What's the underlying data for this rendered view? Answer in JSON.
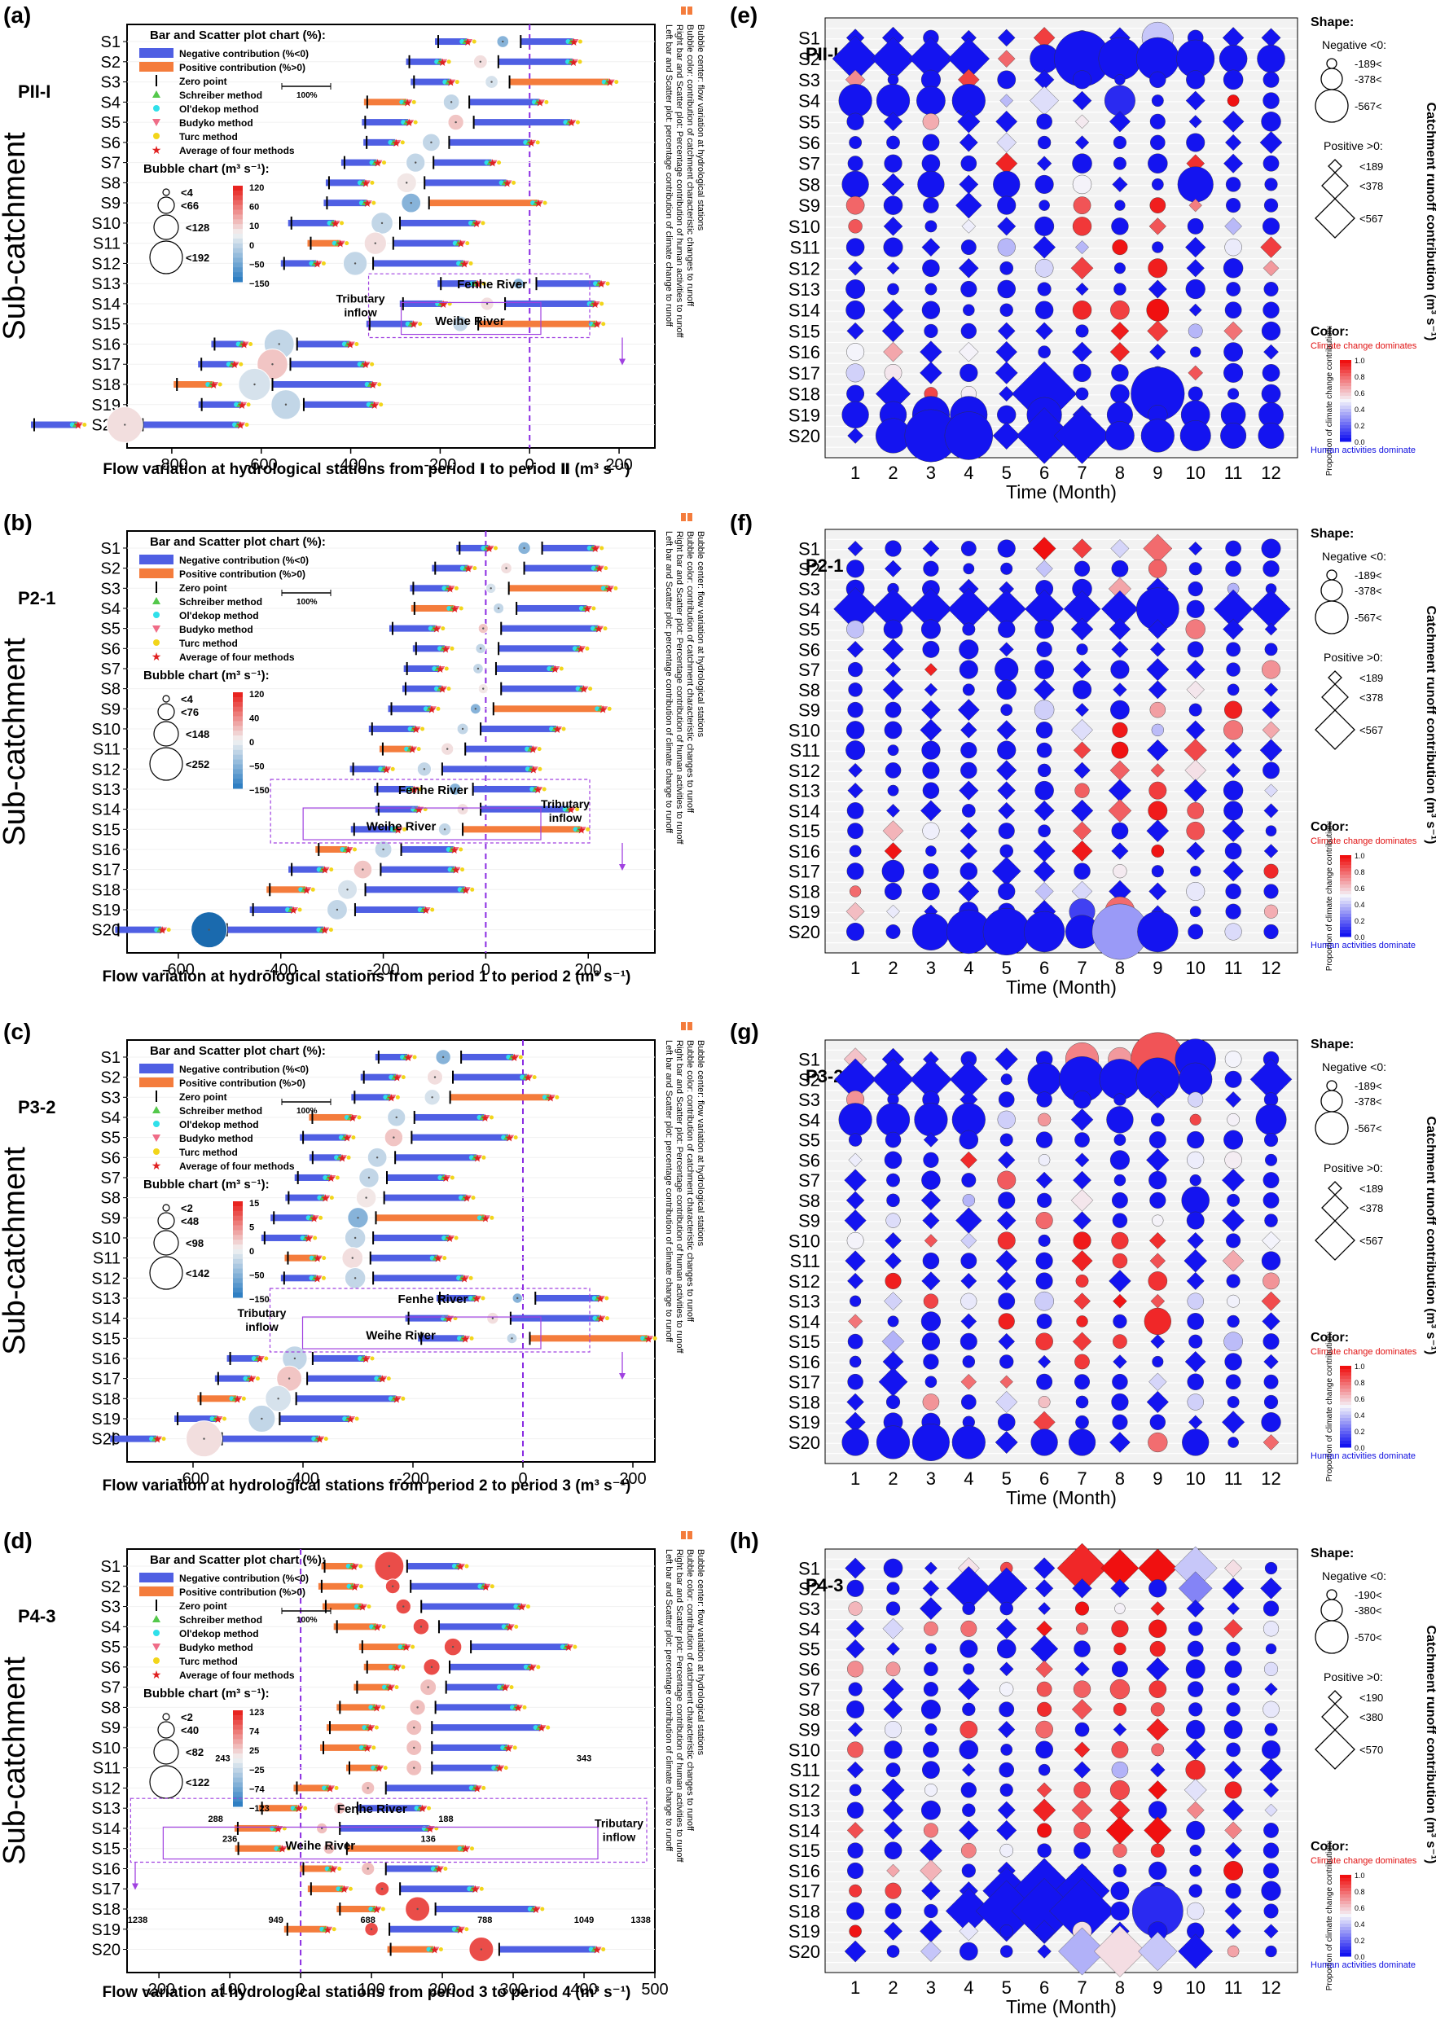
{
  "figure": {
    "sub_catchments": [
      "S1",
      "S2",
      "S3",
      "S4",
      "S5",
      "S6",
      "S7",
      "S8",
      "S9",
      "S10",
      "S11",
      "S12",
      "S13",
      "S14",
      "S15",
      "S16",
      "S17",
      "S18",
      "S19",
      "S20"
    ],
    "y_axis_title": "Sub-catchment",
    "legend_bar_title": "Bar and Scatter plot chart (%):",
    "legend_items": [
      "Negative contribution (%<0)",
      "Positive contribution (%>0)",
      "Zero point",
      "Schreiber method",
      "Ol'dekop method",
      "Budyko method",
      "Turc method",
      "Average of four methods"
    ],
    "scale_label": "100%",
    "bubble_chart_title": "Bubble chart (m³ s⁻¹):",
    "side_note": [
      "Left bar and Scatter plot: percentage contribution of climate change to runoff",
      "Right bar and Scatter plot: Percentage contribution of human activities to runoff",
      "Bubble color: contribution of catchment characteristic changes to runoff",
      "Bubble center: flow variation at hydrological stations"
    ],
    "river_labels": {
      "fenhe": "Fenhe River",
      "weihe": "Weihe River",
      "tributary": "Tributary inflow"
    },
    "heatmap_x_title": "Time (Month)",
    "months": [
      "1",
      "2",
      "3",
      "4",
      "5",
      "6",
      "7",
      "8",
      "9",
      "10",
      "11",
      "12"
    ],
    "shape_title": "Shape:",
    "negative_label": "Negative <0:",
    "positive_label": "Positive >0:",
    "color_title": "Color:",
    "climate_label": "Climate change dominates",
    "human_label": "Human activities dominate",
    "colorbar_title": "Proportion of climate change contribution:",
    "colorbar_ticks": [
      "0.0",
      "0.2",
      "0.4",
      "0.6",
      "0.8",
      "1.0"
    ],
    "right_axis_title": "Catchment runoff contribution (m³ s⁻¹)"
  },
  "chart_data": [
    {
      "panel": "(a)",
      "period": "PII-I",
      "type": "bar",
      "xlabel": "Flow variation at hydrological stations  from period Ⅰ to period Ⅱ (m³ s⁻¹)",
      "xlim": [
        -900,
        280
      ],
      "xticks": [
        -800,
        -600,
        -400,
        -200,
        0,
        200
      ],
      "flow": [
        -60,
        -110,
        -85,
        -175,
        -165,
        -220,
        -255,
        -275,
        -265,
        -330,
        -345,
        -390,
        -25,
        -95,
        -155,
        -560,
        -575,
        -615,
        -545,
        -905
      ],
      "bubble_sizes": [
        "<4",
        "<66",
        "<128",
        "<192"
      ],
      "bubble_scale": [
        "120",
        "60",
        "10",
        "0",
        "−50",
        "−150"
      ]
    },
    {
      "panel": "(b)",
      "period": "P2-1",
      "type": "bar",
      "xlabel": "Flow variation at hydrological stations  from period 1 to period 2 (m³ s⁻¹)",
      "xlim": [
        -700,
        330
      ],
      "xticks": [
        -600,
        -400,
        -200,
        0,
        200
      ],
      "flow": [
        75,
        40,
        10,
        25,
        -5,
        -10,
        -15,
        -5,
        -20,
        -45,
        -75,
        -120,
        -60,
        -45,
        -80,
        -200,
        -240,
        -270,
        -290,
        -540
      ],
      "bubble_sizes": [
        "<4",
        "<76",
        "<148",
        "<252"
      ],
      "bubble_scale": [
        "120",
        "40",
        "0",
        "−50",
        "−150"
      ]
    },
    {
      "panel": "(c)",
      "period": "P3-2",
      "type": "bar",
      "xlabel": "Flow variation at hydrological stations  from period 2 to period 3 (m³ s⁻¹)",
      "xlim": [
        -720,
        240
      ],
      "xticks": [
        -600,
        -400,
        -200,
        0,
        200
      ],
      "flow": [
        -145,
        -160,
        -165,
        -230,
        -235,
        -265,
        -280,
        -285,
        -300,
        -305,
        -310,
        -305,
        -10,
        -55,
        -20,
        -415,
        -425,
        -445,
        -475,
        -580
      ],
      "bubble_sizes": [
        "<2",
        "<48",
        "<98",
        "<142"
      ],
      "bubble_scale": [
        "15",
        "5",
        "0",
        "−50",
        "−150"
      ]
    },
    {
      "panel": "(d)",
      "period": "P4-3",
      "type": "bar",
      "xlabel": "Flow variation at hydrological stations  from period 3 to period 4 (m³ s⁻¹)",
      "xlim": [
        -245,
        500
      ],
      "xticks": [
        -200,
        -100,
        0,
        100,
        200,
        300,
        400,
        500
      ],
      "flow": [
        125,
        130,
        145,
        170,
        215,
        185,
        180,
        165,
        160,
        160,
        160,
        95,
        55,
        30,
        40,
        95,
        115,
        165,
        100,
        255
      ],
      "bubble_sizes": [
        "<2",
        "<40",
        "<82",
        "<122"
      ],
      "bubble_scale": [
        "123",
        "74",
        "25",
        "−25",
        "−74",
        "−123"
      ],
      "break_labels": [
        "243",
        "343",
        "288",
        "188",
        "236",
        "136",
        "1238",
        "949",
        "688",
        "788",
        "1049",
        "1338"
      ]
    },
    {
      "panel": "(e)",
      "period": "PII-I",
      "type": "heatmap",
      "shape_neg": [
        "-189<",
        "-378<",
        "-567<"
      ],
      "shape_pos": [
        "<189",
        "<378",
        "<567"
      ],
      "highlights": [
        [
          0,
          5,
          "d",
          60,
          0.9
        ],
        [
          0,
          8,
          "c",
          180,
          0.4
        ],
        [
          1,
          0,
          "d",
          280,
          0.0
        ],
        [
          1,
          1,
          "d",
          250,
          0.0
        ],
        [
          1,
          2,
          "d",
          250,
          0.0
        ],
        [
          1,
          3,
          "d",
          230,
          0.0
        ],
        [
          1,
          5,
          "c",
          150,
          0.0
        ],
        [
          1,
          6,
          "c",
          560,
          0.0
        ],
        [
          1,
          7,
          "c",
          330,
          0.0
        ],
        [
          1,
          8,
          "c",
          330,
          0.0
        ],
        [
          1,
          9,
          "c",
          260,
          0.0
        ],
        [
          1,
          10,
          "c",
          140,
          0.0
        ],
        [
          1,
          11,
          "c",
          140,
          0.0
        ],
        [
          3,
          0,
          "c",
          200,
          0.0
        ],
        [
          3,
          1,
          "c",
          200,
          0.0
        ],
        [
          3,
          2,
          "c",
          150,
          0.0
        ],
        [
          3,
          3,
          "c",
          200,
          0.0
        ],
        [
          3,
          5,
          "d",
          110,
          0.45
        ],
        [
          3,
          7,
          "c",
          170,
          0.05
        ],
        [
          7,
          0,
          "c",
          130,
          0.0
        ],
        [
          7,
          2,
          "c",
          130,
          0.0
        ],
        [
          7,
          4,
          "c",
          130,
          0.0
        ],
        [
          7,
          9,
          "c",
          230,
          0.0
        ],
        [
          8,
          3,
          "d",
          90,
          0.0
        ],
        [
          13,
          8,
          "c",
          90,
          1.0
        ],
        [
          17,
          1,
          "d",
          160,
          0.0
        ],
        [
          17,
          5,
          "d",
          560,
          0.0
        ],
        [
          17,
          8,
          "c",
          520,
          0.0
        ],
        [
          18,
          0,
          "c",
          130,
          0.0
        ],
        [
          18,
          1,
          "c",
          130,
          0.0
        ],
        [
          18,
          2,
          "c",
          250,
          0.0
        ],
        [
          18,
          3,
          "c",
          250,
          0.0
        ],
        [
          18,
          5,
          "c",
          220,
          0.0
        ],
        [
          18,
          7,
          "c",
          120,
          0.0
        ],
        [
          18,
          9,
          "c",
          150,
          0.0
        ],
        [
          18,
          10,
          "c",
          110,
          0.0
        ],
        [
          18,
          11,
          "c",
          110,
          0.0
        ],
        [
          19,
          1,
          "c",
          220,
          0.0
        ],
        [
          19,
          2,
          "c",
          500,
          0.0
        ],
        [
          19,
          3,
          "c",
          420,
          0.0
        ],
        [
          19,
          4,
          "d",
          100,
          0.0
        ],
        [
          19,
          5,
          "d",
          420,
          0.0
        ],
        [
          19,
          6,
          "d",
          420,
          0.0
        ],
        [
          19,
          7,
          "c",
          150,
          0.0
        ],
        [
          19,
          8,
          "c",
          200,
          0.0
        ],
        [
          19,
          9,
          "c",
          170,
          0.0
        ],
        [
          19,
          10,
          "c",
          120,
          0.0
        ],
        [
          19,
          11,
          "c",
          120,
          0.0
        ]
      ]
    },
    {
      "panel": "(f)",
      "period": "P2-1",
      "type": "heatmap",
      "shape_neg": [
        "-189<",
        "-378<",
        "-567<"
      ],
      "shape_pos": [
        "<189",
        "<378",
        "<567"
      ],
      "highlights": [
        [
          0,
          5,
          "d",
          70,
          1.0
        ],
        [
          0,
          6,
          "d",
          50,
          0.9
        ],
        [
          0,
          8,
          "d",
          110,
          0.8
        ],
        [
          3,
          0,
          "d",
          250,
          0.0
        ],
        [
          3,
          1,
          "d",
          230,
          0.0
        ],
        [
          3,
          2,
          "d",
          230,
          0.0
        ],
        [
          3,
          3,
          "d",
          230,
          0.0
        ],
        [
          3,
          4,
          "d",
          200,
          0.0
        ],
        [
          3,
          5,
          "d",
          200,
          0.0
        ],
        [
          3,
          6,
          "d",
          180,
          0.0
        ],
        [
          3,
          7,
          "d",
          180,
          0.0
        ],
        [
          3,
          8,
          "c",
          330,
          0.0
        ],
        [
          3,
          10,
          "d",
          200,
          0.0
        ],
        [
          3,
          11,
          "d",
          200,
          0.0
        ],
        [
          6,
          4,
          "c",
          100,
          0.0
        ],
        [
          16,
          4,
          "d",
          110,
          0.0
        ],
        [
          16,
          1,
          "c",
          90,
          0.0
        ],
        [
          18,
          7,
          "c",
          160,
          0.8
        ],
        [
          18,
          6,
          "c",
          120,
          0.1
        ],
        [
          19,
          2,
          "c",
          250,
          0.0
        ],
        [
          19,
          3,
          "c",
          350,
          0.0
        ],
        [
          19,
          4,
          "c",
          400,
          0.0
        ],
        [
          19,
          5,
          "c",
          300,
          0.0
        ],
        [
          19,
          6,
          "c",
          200,
          0.0
        ],
        [
          19,
          7,
          "c",
          560,
          0.3
        ],
        [
          19,
          8,
          "c",
          300,
          0.0
        ]
      ]
    },
    {
      "panel": "(g)",
      "period": "P3-2",
      "type": "heatmap",
      "shape_neg": [
        "-189<",
        "-378<",
        "-567<"
      ],
      "shape_pos": [
        "<189",
        "<378",
        "<567"
      ],
      "highlights": [
        [
          0,
          6,
          "c",
          200,
          0.75
        ],
        [
          0,
          7,
          "c",
          100,
          0.7
        ],
        [
          0,
          8,
          "c",
          520,
          0.85
        ],
        [
          0,
          9,
          "c",
          300,
          0.0
        ],
        [
          1,
          0,
          "d",
          230,
          0.0
        ],
        [
          1,
          1,
          "d",
          230,
          0.0
        ],
        [
          1,
          2,
          "d",
          230,
          0.0
        ],
        [
          1,
          3,
          "d",
          190,
          0.0
        ],
        [
          1,
          5,
          "c",
          200,
          0.0
        ],
        [
          1,
          6,
          "c",
          380,
          0.0
        ],
        [
          1,
          7,
          "c",
          300,
          0.0
        ],
        [
          1,
          8,
          "c",
          340,
          0.0
        ],
        [
          1,
          9,
          "c",
          200,
          0.0
        ],
        [
          1,
          11,
          "d",
          230,
          0.0
        ],
        [
          3,
          0,
          "c",
          200,
          0.0
        ],
        [
          3,
          1,
          "c",
          200,
          0.0
        ],
        [
          3,
          2,
          "c",
          200,
          0.0
        ],
        [
          3,
          3,
          "c",
          200,
          0.0
        ],
        [
          3,
          7,
          "c",
          130,
          0.0
        ],
        [
          3,
          11,
          "c",
          170,
          0.0
        ],
        [
          7,
          9,
          "c",
          140,
          0.0
        ],
        [
          8,
          3,
          "d",
          90,
          0.0
        ],
        [
          13,
          8,
          "c",
          130,
          0.95
        ],
        [
          16,
          1,
          "d",
          110,
          0.0
        ],
        [
          19,
          0,
          "c",
          130,
          0.0
        ],
        [
          19,
          1,
          "c",
          200,
          0.0
        ],
        [
          19,
          2,
          "c",
          250,
          0.0
        ],
        [
          19,
          3,
          "c",
          200,
          0.0
        ],
        [
          19,
          5,
          "c",
          130,
          0.0
        ],
        [
          19,
          6,
          "c",
          130,
          0.0
        ],
        [
          19,
          9,
          "c",
          130,
          0.0
        ]
      ]
    },
    {
      "panel": "(h)",
      "period": "P4-3",
      "type": "heatmap",
      "shape_neg": [
        "-190<",
        "-380<",
        "-570<"
      ],
      "shape_pos": [
        "<190",
        "<380",
        "<570"
      ],
      "highlights": [
        [
          0,
          6,
          "d",
          330,
          0.95
        ],
        [
          0,
          7,
          "d",
          190,
          1.0
        ],
        [
          0,
          8,
          "d",
          200,
          1.0
        ],
        [
          0,
          9,
          "d",
          250,
          0.4
        ],
        [
          1,
          3,
          "d",
          260,
          0.0
        ],
        [
          1,
          4,
          "d",
          230,
          0.0
        ],
        [
          1,
          9,
          "d",
          150,
          0.25
        ],
        [
          4,
          5,
          "d",
          100,
          0.0
        ],
        [
          13,
          7,
          "d",
          100,
          1.0
        ],
        [
          13,
          8,
          "d",
          100,
          1.0
        ],
        [
          16,
          4,
          "d",
          300,
          0.0
        ],
        [
          16,
          5,
          "d",
          570,
          0.0
        ],
        [
          16,
          6,
          "d",
          400,
          0.0
        ],
        [
          17,
          3,
          "d",
          280,
          0.0
        ],
        [
          17,
          4,
          "d",
          500,
          0.0
        ],
        [
          17,
          5,
          "d",
          570,
          0.0
        ],
        [
          17,
          6,
          "d",
          570,
          0.0
        ],
        [
          17,
          8,
          "c",
          470,
          0.05
        ],
        [
          19,
          6,
          "d",
          300,
          0.35
        ],
        [
          19,
          7,
          "d",
          350,
          0.55
        ],
        [
          19,
          8,
          "d",
          200,
          0.4
        ],
        [
          19,
          9,
          "d",
          160,
          0.0
        ]
      ]
    }
  ]
}
